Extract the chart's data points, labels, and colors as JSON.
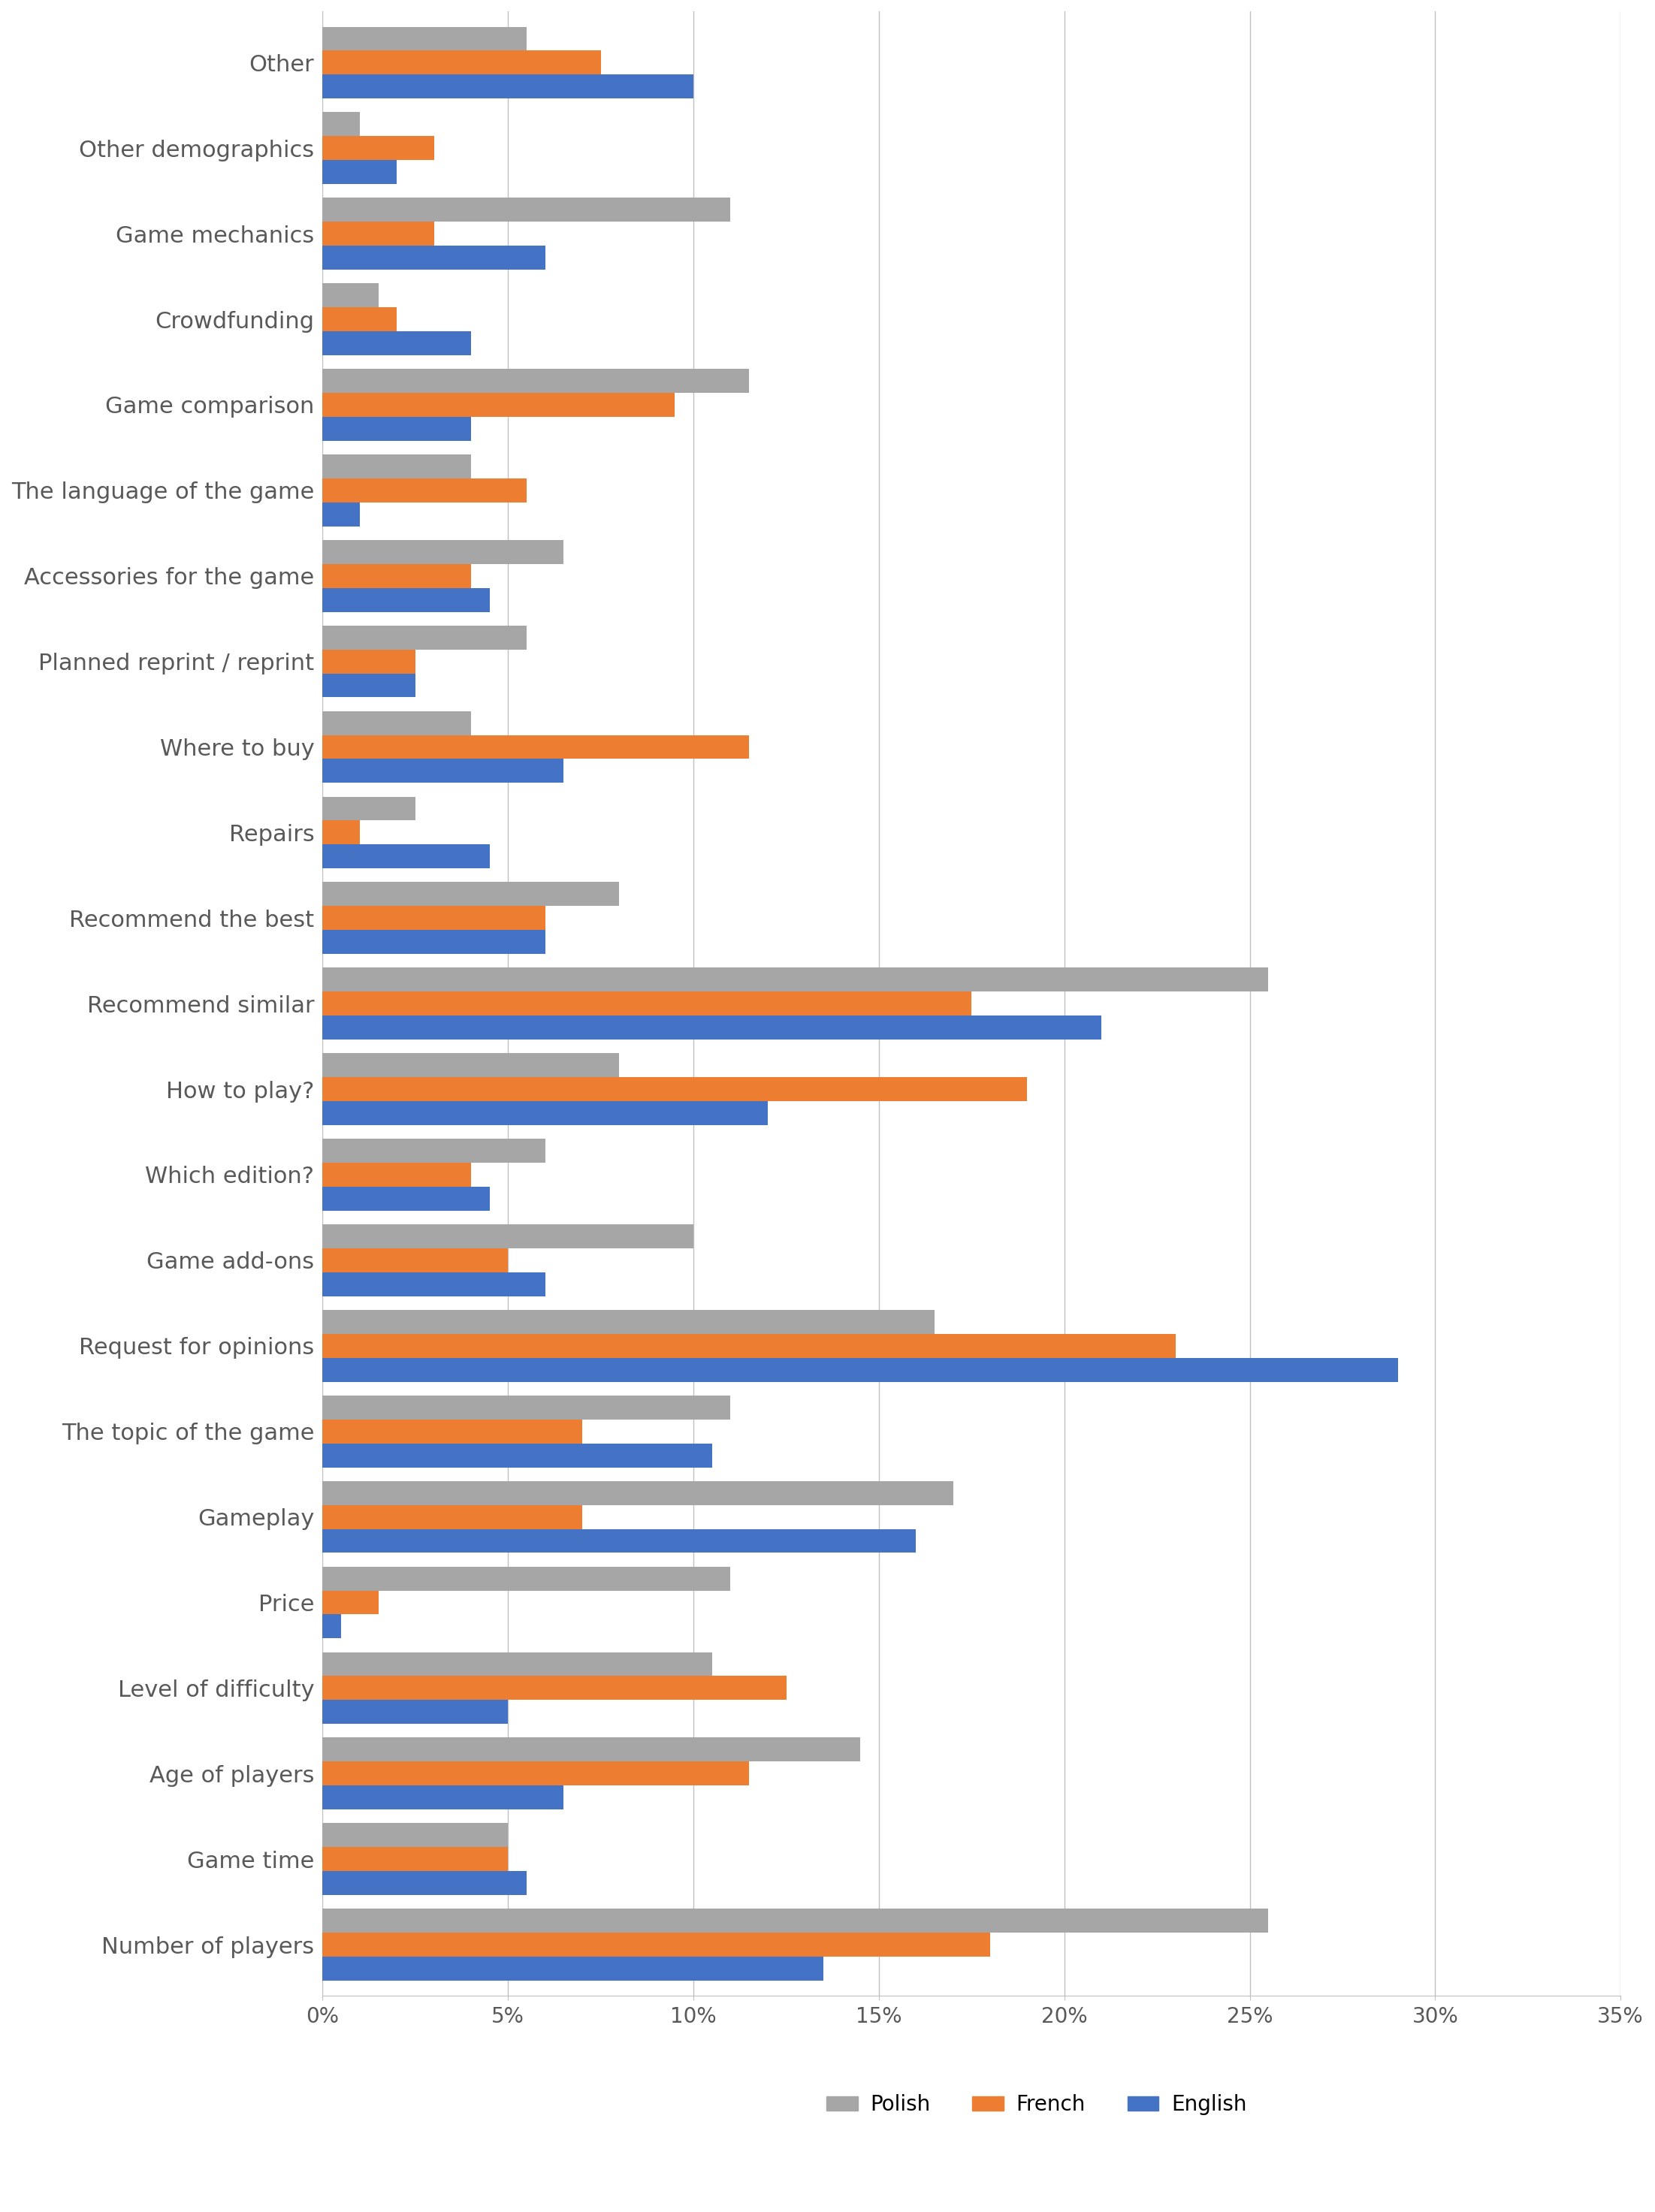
{
  "categories": [
    "Number of players",
    "Game time",
    "Age of players",
    "Level of difficulty",
    "Price",
    "Gameplay",
    "The topic of the game",
    "Request for opinions",
    "Game add-ons",
    "Which edition?",
    "How to play?",
    "Recommend similar",
    "Recommend the best",
    "Repairs",
    "Where to buy",
    "Planned reprint / reprint",
    "Accessories for the game",
    "The language of the game",
    "Game comparison",
    "Crowdfunding",
    "Game mechanics",
    "Other demographics",
    "Other"
  ],
  "polish": [
    25.5,
    5.0,
    14.5,
    10.5,
    11.0,
    17.0,
    11.0,
    16.5,
    10.0,
    6.0,
    8.0,
    25.5,
    8.0,
    2.5,
    4.0,
    5.5,
    6.5,
    4.0,
    11.5,
    1.5,
    11.0,
    1.0,
    5.5
  ],
  "french": [
    18.0,
    5.0,
    11.5,
    12.5,
    1.5,
    7.0,
    7.0,
    23.0,
    5.0,
    4.0,
    19.0,
    17.5,
    6.0,
    1.0,
    11.5,
    2.5,
    4.0,
    5.5,
    9.5,
    2.0,
    3.0,
    3.0,
    7.5
  ],
  "english": [
    13.5,
    5.5,
    6.5,
    5.0,
    0.5,
    16.0,
    10.5,
    29.0,
    6.0,
    4.5,
    12.0,
    21.0,
    6.0,
    4.5,
    6.5,
    2.5,
    4.5,
    1.0,
    4.0,
    4.0,
    6.0,
    2.0,
    10.0
  ],
  "colors": {
    "polish": "#A6A6A6",
    "french": "#ED7D31",
    "english": "#4472C4"
  },
  "xlim": [
    0,
    35
  ],
  "xticks": [
    0,
    5,
    10,
    15,
    20,
    25,
    30,
    35
  ],
  "xticklabels": [
    "0%",
    "5%",
    "10%",
    "15%",
    "20%",
    "25%",
    "30%",
    "35%"
  ],
  "legend_labels": [
    "Polish",
    "French",
    "English"
  ],
  "bar_height": 0.28,
  "background_color": "#ffffff",
  "grid_color": "#C0C0C0",
  "label_fontsize": 22,
  "tick_fontsize": 20,
  "legend_fontsize": 20
}
